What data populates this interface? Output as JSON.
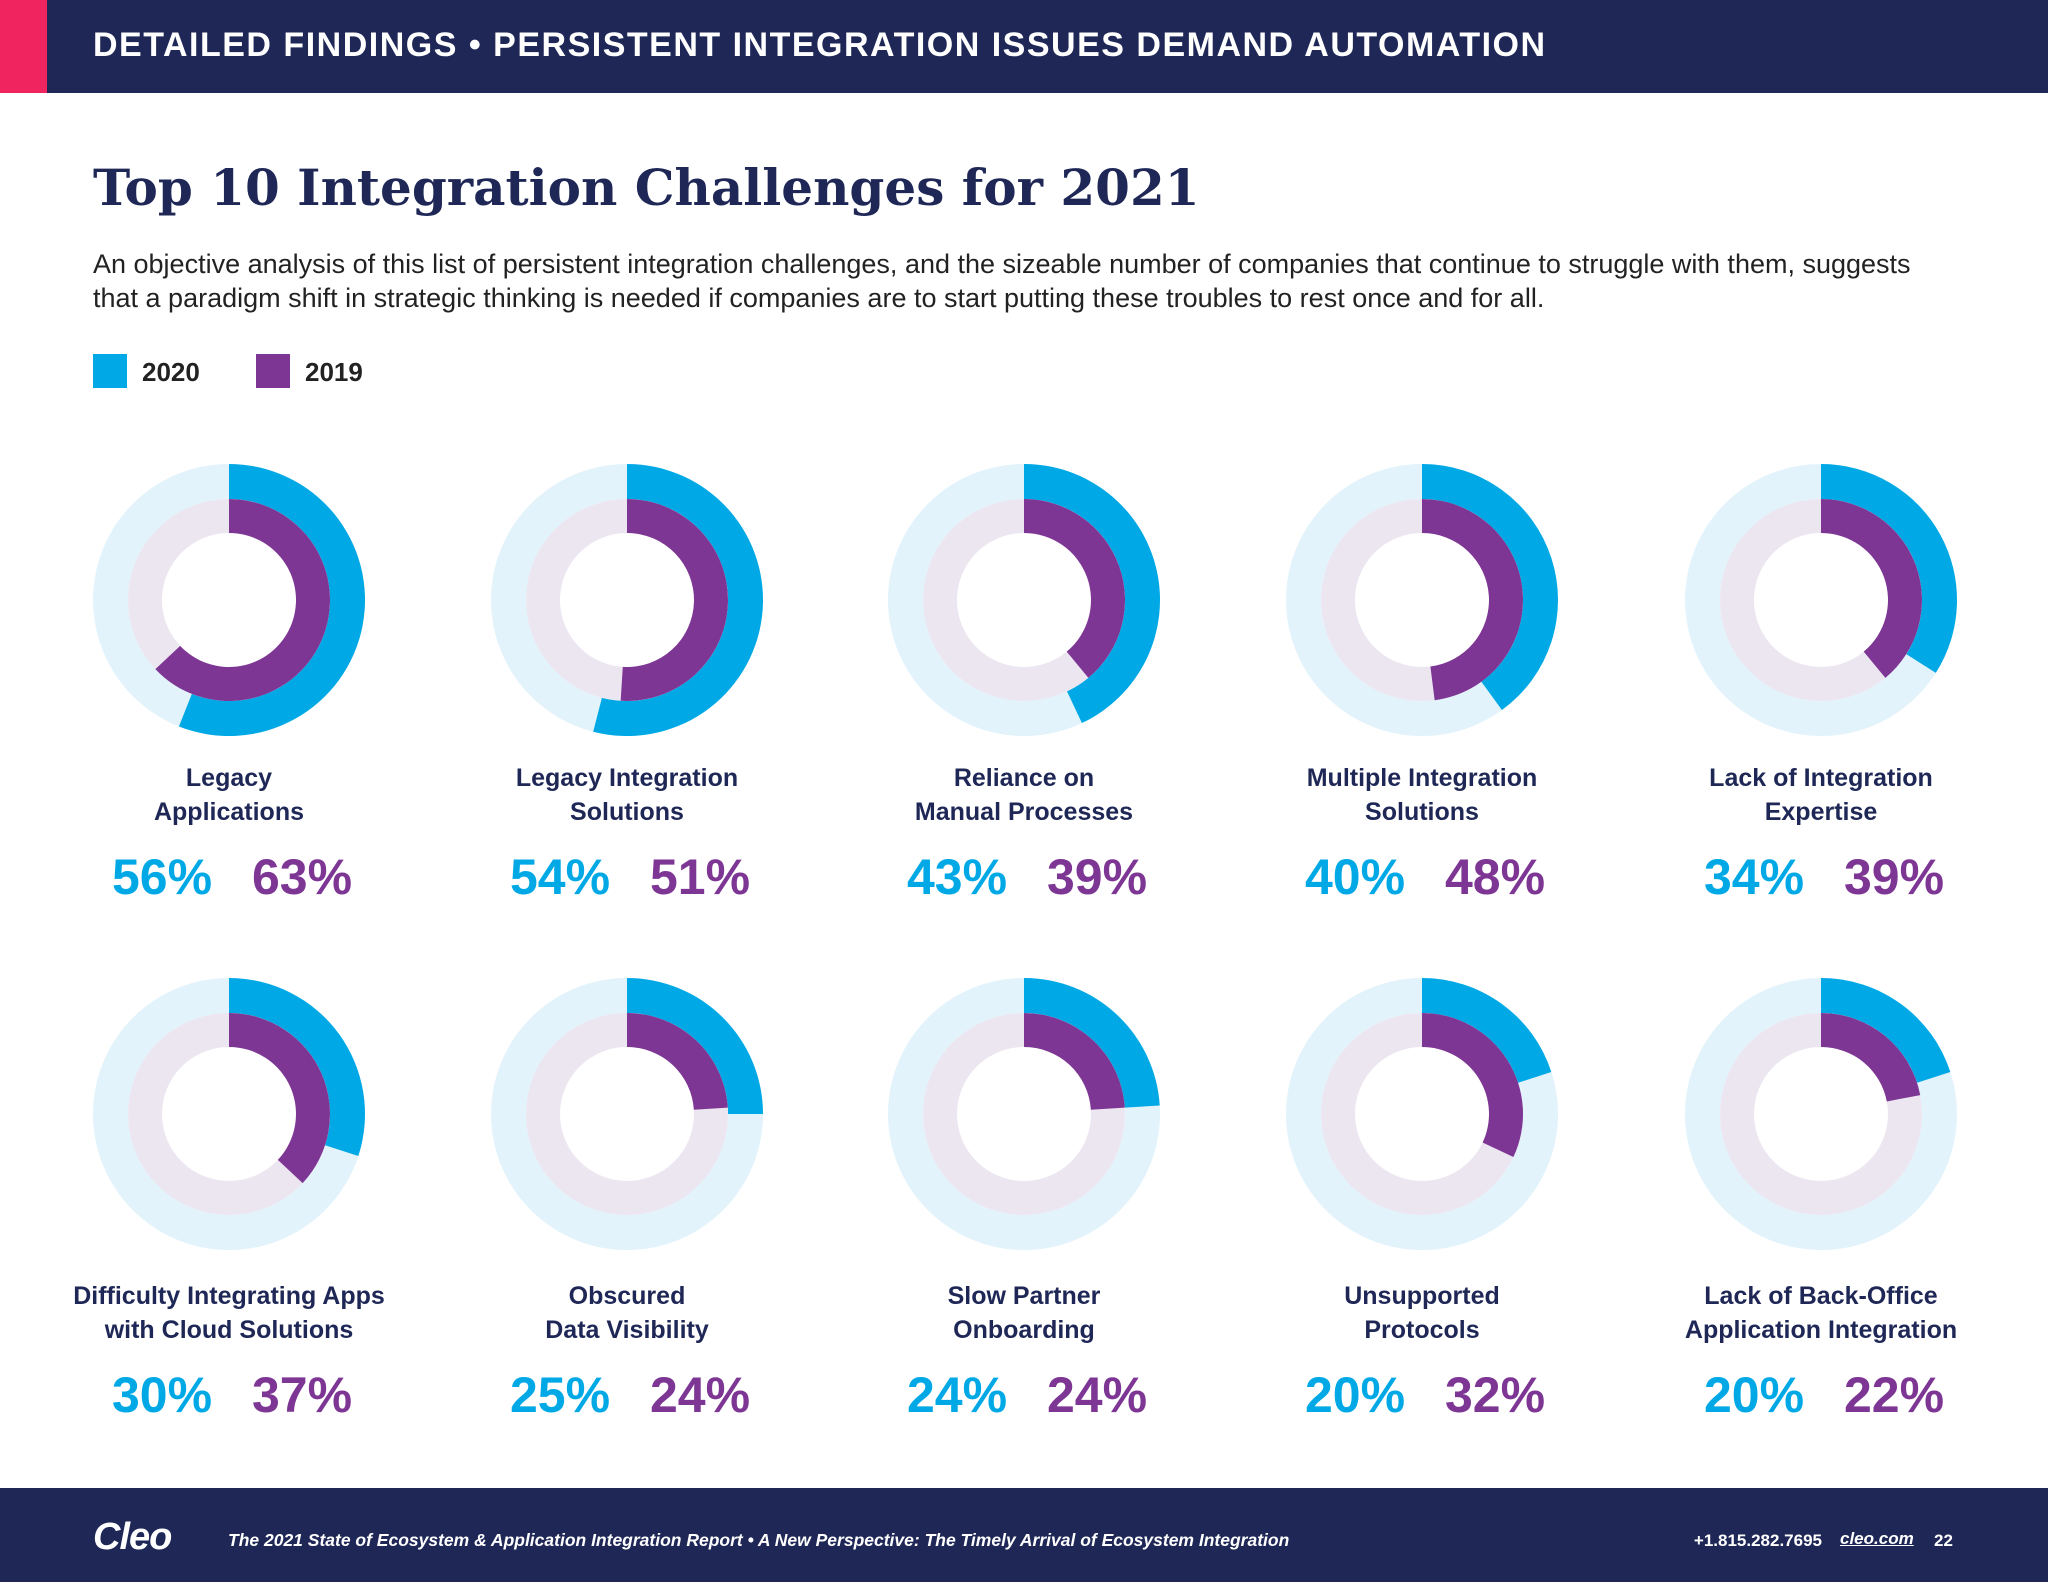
{
  "header": {
    "title": "DETAILED FINDINGS • PERSISTENT INTEGRATION ISSUES DEMAND AUTOMATION"
  },
  "title": "Top 10 Integration Challenges for 2021",
  "subtitle": "An objective analysis of this list of persistent integration challenges, and the sizeable number of companies that continue to struggle with them, suggests that a paradigm shift in strategic thinking is needed if companies are to start putting these troubles to rest once and for all.",
  "chart_data": [
    {
      "type": "donut",
      "title": "Legacy\nApplications",
      "series": [
        {
          "name": "2020",
          "color": "#00a9e6",
          "values": [
            56
          ],
          "value_labels": [
            "56%"
          ]
        },
        {
          "name": "2019",
          "color": "#7d3694",
          "values": [
            63
          ],
          "value_labels": [
            "63%"
          ]
        }
      ]
    },
    {
      "type": "donut",
      "title": "Legacy Integration\nSolutions",
      "series": [
        {
          "name": "2020",
          "color": "#00a9e6",
          "values": [
            54
          ],
          "value_labels": [
            "54%"
          ]
        },
        {
          "name": "2019",
          "color": "#7d3694",
          "values": [
            51
          ],
          "value_labels": [
            "51%"
          ]
        }
      ]
    },
    {
      "type": "donut",
      "title": "Reliance on\nManual Processes",
      "series": [
        {
          "name": "2020",
          "color": "#00a9e6",
          "values": [
            43
          ],
          "value_labels": [
            "43%"
          ]
        },
        {
          "name": "2019",
          "color": "#7d3694",
          "values": [
            39
          ],
          "value_labels": [
            "39%"
          ]
        }
      ]
    },
    {
      "type": "donut",
      "title": "Multiple Integration\nSolutions",
      "series": [
        {
          "name": "2020",
          "color": "#00a9e6",
          "values": [
            40
          ],
          "value_labels": [
            "40%"
          ]
        },
        {
          "name": "2019",
          "color": "#7d3694",
          "values": [
            48
          ],
          "value_labels": [
            "48%"
          ]
        }
      ]
    },
    {
      "type": "donut",
      "title": "Lack of Integration\nExpertise",
      "series": [
        {
          "name": "2020",
          "color": "#00a9e6",
          "values": [
            34
          ],
          "value_labels": [
            "34%"
          ]
        },
        {
          "name": "2019",
          "color": "#7d3694",
          "values": [
            39
          ],
          "value_labels": [
            "39%"
          ]
        }
      ]
    },
    {
      "type": "donut",
      "title": "Difficulty Integrating Apps\nwith Cloud Solutions",
      "series": [
        {
          "name": "2020",
          "color": "#00a9e6",
          "values": [
            30
          ],
          "value_labels": [
            "30%"
          ]
        },
        {
          "name": "2019",
          "color": "#7d3694",
          "values": [
            37
          ],
          "value_labels": [
            "37%"
          ]
        }
      ]
    },
    {
      "type": "donut",
      "title": "Obscured\nData Visibility",
      "series": [
        {
          "name": "2020",
          "color": "#00a9e6",
          "values": [
            25
          ],
          "value_labels": [
            "25%"
          ]
        },
        {
          "name": "2019",
          "color": "#7d3694",
          "values": [
            24
          ],
          "value_labels": [
            "24%"
          ]
        }
      ]
    },
    {
      "type": "donut",
      "title": "Slow Partner\nOnboarding",
      "series": [
        {
          "name": "2020",
          "color": "#00a9e6",
          "values": [
            24
          ],
          "value_labels": [
            "24%"
          ]
        },
        {
          "name": "2019",
          "color": "#7d3694",
          "values": [
            24
          ],
          "value_labels": [
            "24%"
          ]
        }
      ]
    },
    {
      "type": "donut",
      "title": "Unsupported\nProtocols",
      "series": [
        {
          "name": "2020",
          "color": "#00a9e6",
          "values": [
            20
          ],
          "value_labels": [
            "20%"
          ]
        },
        {
          "name": "2019",
          "color": "#7d3694",
          "values": [
            32
          ],
          "value_labels": [
            "32%"
          ]
        }
      ]
    },
    {
      "type": "donut",
      "title": "Lack of Back-Office\nApplication Integration",
      "series": [
        {
          "name": "2020",
          "color": "#00a9e6",
          "values": [
            20
          ],
          "value_labels": [
            "20%"
          ]
        },
        {
          "name": "2019",
          "color": "#7d3694",
          "values": [
            22
          ],
          "value_labels": [
            "22%"
          ]
        }
      ]
    }
  ],
  "footer": {
    "logo": "Cleo",
    "report": "The 2021 State of Ecosystem & Application Integration Report  •  A New Perspective: The Timely Arrival of Ecosystem Integration",
    "phone": "+1.815.282.7695",
    "website": "cleo.com",
    "page": "22"
  }
}
